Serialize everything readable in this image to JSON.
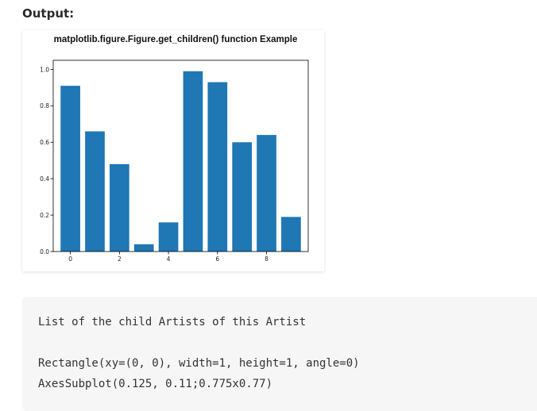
{
  "heading": "Output:",
  "chart_data": {
    "type": "bar",
    "title": "matplotlib.figure.Figure.get_children() function Example",
    "xlabel": "",
    "ylabel": "",
    "categories": [
      0,
      1,
      2,
      3,
      4,
      5,
      6,
      7,
      8,
      9
    ],
    "values": [
      0.91,
      0.66,
      0.48,
      0.04,
      0.16,
      0.99,
      0.93,
      0.6,
      0.64,
      0.19
    ],
    "xlim": [
      -0.7,
      9.7
    ],
    "ylim": [
      0,
      1.05
    ],
    "xticks": [
      0,
      2,
      4,
      6,
      8
    ],
    "xtick_labels": [
      "0",
      "2",
      "4",
      "6",
      "8"
    ],
    "yticks": [
      0.0,
      0.2,
      0.4,
      0.6,
      0.8,
      1.0
    ],
    "ytick_labels": [
      "0.0",
      "0.2",
      "0.4",
      "0.6",
      "0.8",
      "1.0"
    ],
    "grid": false,
    "bar_color": "#1f77b4"
  },
  "code_output": {
    "line1": "List of the child Artists of this Artist",
    "line2": "Rectangle(xy=(0, 0), width=1, height=1, angle=0)",
    "line3": "AxesSubplot(0.125, 0.11;0.775x0.77)"
  }
}
